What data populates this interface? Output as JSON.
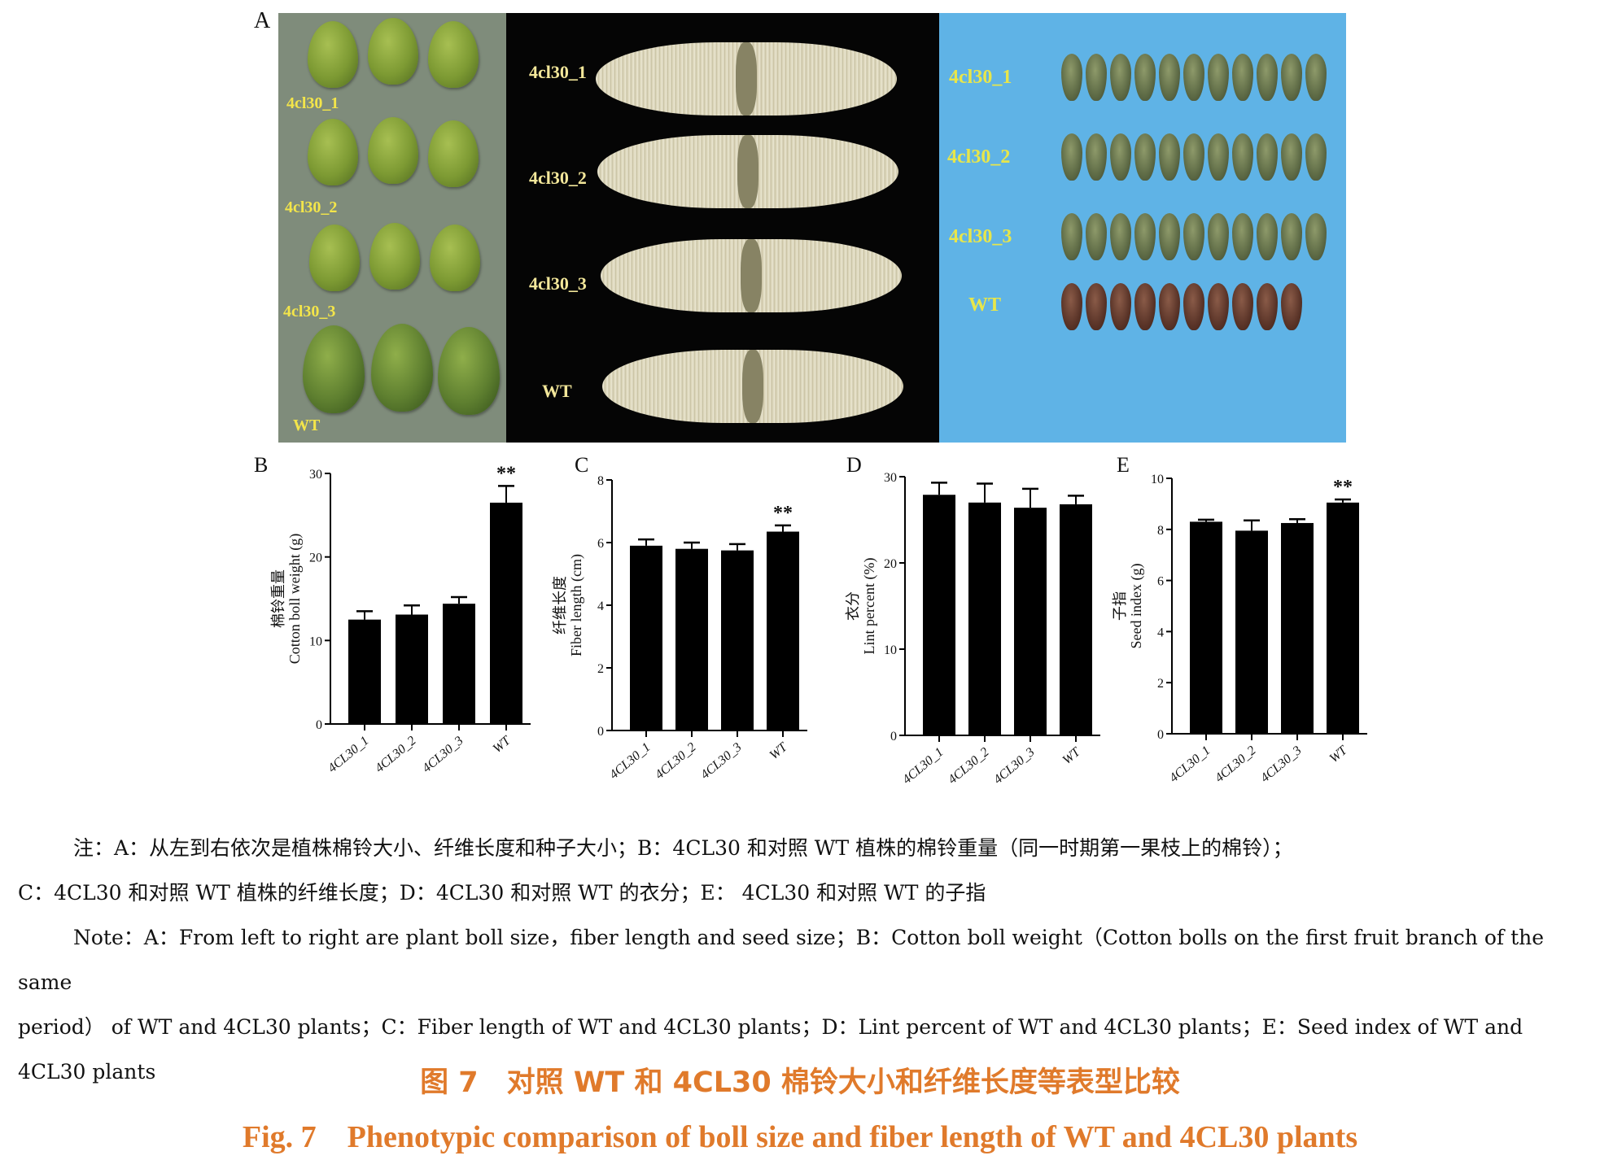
{
  "panel_a": {
    "letter": "A",
    "boll_labels": [
      "4cl30_1",
      "4cl30_2",
      "4cl30_3",
      "WT"
    ],
    "fiber_labels": [
      "4cl30_1",
      "4cl30_2",
      "4cl30_3",
      "WT"
    ],
    "seed_labels": [
      "4cl30_1",
      "4cl30_2",
      "4cl30_3",
      "WT"
    ]
  },
  "chart_data": [
    {
      "type": "bar",
      "panel": "B",
      "ylabel_cn": "棉铃重量",
      "ylabel": "Cotton boll weight (g)",
      "categories": [
        "4CL30_1",
        "4CL30_2",
        "4CL30_3",
        "WT"
      ],
      "values": [
        12.5,
        13.1,
        14.4,
        26.5
      ],
      "errors": [
        1.0,
        1.1,
        0.8,
        2.0
      ],
      "ylim": [
        0,
        30
      ],
      "yticks": [
        "0",
        "10",
        "20",
        "30"
      ],
      "significance": [
        "",
        "",
        "",
        "**"
      ],
      "color": "#000000"
    },
    {
      "type": "bar",
      "panel": "C",
      "ylabel_cn": "纤维长度",
      "ylabel": "Fiber length (cm)",
      "categories": [
        "4CL30_1",
        "4CL30_2",
        "4CL30_3",
        "WT"
      ],
      "values": [
        5.9,
        5.8,
        5.75,
        6.35
      ],
      "errors": [
        0.2,
        0.2,
        0.2,
        0.2
      ],
      "ylim": [
        0,
        8
      ],
      "yticks": [
        "0",
        "2",
        "4",
        "6",
        "8"
      ],
      "significance": [
        "",
        "",
        "",
        "**"
      ],
      "color": "#000000"
    },
    {
      "type": "bar",
      "panel": "D",
      "ylabel_cn": "衣分",
      "ylabel": "Lint percent (%)",
      "categories": [
        "4CL30_1",
        "4CL30_2",
        "4CL30_3",
        "WT"
      ],
      "values": [
        27.9,
        27.0,
        26.4,
        26.8
      ],
      "errors": [
        1.4,
        2.2,
        2.2,
        1.0
      ],
      "ylim": [
        0,
        30
      ],
      "yticks": [
        "0",
        "10",
        "20",
        "30"
      ],
      "significance": [
        "",
        "",
        "",
        ""
      ],
      "color": "#000000"
    },
    {
      "type": "bar",
      "panel": "E",
      "ylabel_cn": "子指",
      "ylabel": "Seed index (g)",
      "categories": [
        "4CL30_1",
        "4CL30_2",
        "4CL30_3",
        "WT"
      ],
      "values": [
        8.3,
        7.95,
        8.25,
        9.05
      ],
      "errors": [
        0.08,
        0.4,
        0.15,
        0.12
      ],
      "ylim": [
        0,
        10
      ],
      "yticks": [
        "0",
        "2",
        "4",
        "6",
        "8",
        "10"
      ],
      "significance": [
        "",
        "",
        "",
        "**"
      ],
      "color": "#000000"
    }
  ],
  "notes": {
    "cn_line1": "注：A：从左到右依次是植株棉铃大小、纤维长度和种子大小；B：4CL30 和对照 WT 植株的棉铃重量（同一时期第一果枝上的棉铃）；",
    "cn_line2": "C：4CL30 和对照 WT 植株的纤维长度；D：4CL30 和对照 WT 的衣分；E： 4CL30 和对照 WT 的子指",
    "en_line1": "Note：A：From left to right are plant boll size，fiber length and seed size；B：Cotton boll weight（Cotton bolls on the first fruit branch of the same",
    "en_line2": "period） of WT and 4CL30 plants；C：Fiber length of WT and 4CL30 plants；D：Lint percent of WT and 4CL30 plants；E：Seed index of WT and",
    "en_line3": "4CL30 plants"
  },
  "caption": {
    "cn": "图 7　对照 WT 和 4CL30 棉铃大小和纤维长度等表型比较",
    "en": "Fig. 7　Phenotypic comparison of boll size and fiber length of WT and 4CL30 plants",
    "color": "#e07a2b"
  }
}
